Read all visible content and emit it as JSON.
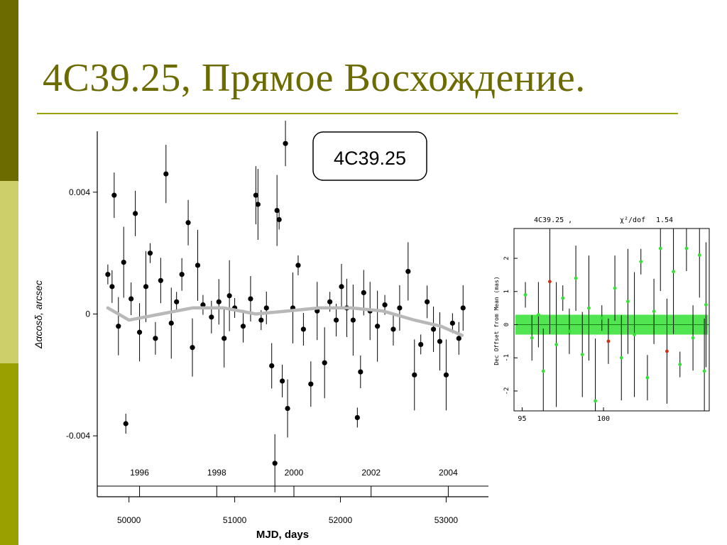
{
  "slide": {
    "title": "4C39.25, Прямое Восхождение."
  },
  "colors": {
    "title": "#6b6b00",
    "rule": "#9aa000",
    "points": "#000000",
    "trend": "#b8b8b8",
    "inset_points": "#33e033",
    "inset_outliers": "#d03010"
  },
  "chart_data": [
    {
      "type": "scatter",
      "title": "4C39.25",
      "xlabel": "MJD, days",
      "ylabel": "Δαcosδ, arcsec",
      "xlim": [
        49700,
        53400
      ],
      "ylim": [
        -0.006,
        0.006
      ],
      "x_ticks": [
        50000,
        51000,
        52000,
        53000
      ],
      "x_tick_labels": [
        "50000",
        "51000",
        "52000",
        "53000"
      ],
      "y_ticks": [
        0.004,
        0,
        -0.004
      ],
      "y_tick_labels": [
        "0.004",
        "0",
        "-0.004"
      ],
      "year_ticks": [
        {
          "mjd": 50100,
          "label": "1996"
        },
        {
          "mjd": 50830,
          "label": "1998"
        },
        {
          "mjd": 51560,
          "label": "2000"
        },
        {
          "mjd": 52290,
          "label": "2002"
        },
        {
          "mjd": 53020,
          "label": "2004"
        }
      ],
      "grid": false,
      "series": [
        {
          "points": [
            {
              "x": 49800,
              "y": 0.0013
            },
            {
              "x": 49840,
              "y": 0.0009
            },
            {
              "x": 49860,
              "y": 0.0039
            },
            {
              "x": 49900,
              "y": -0.0004
            },
            {
              "x": 49950,
              "y": 0.0017
            },
            {
              "x": 49970,
              "y": -0.0036
            },
            {
              "x": 50020,
              "y": 0.0005
            },
            {
              "x": 50060,
              "y": 0.0033
            },
            {
              "x": 50100,
              "y": -0.0006
            },
            {
              "x": 50160,
              "y": 0.0009
            },
            {
              "x": 50200,
              "y": 0.002
            },
            {
              "x": 50250,
              "y": -0.0008
            },
            {
              "x": 50300,
              "y": 0.0011
            },
            {
              "x": 50350,
              "y": 0.0046
            },
            {
              "x": 50400,
              "y": -0.0003
            },
            {
              "x": 50450,
              "y": 0.0004
            },
            {
              "x": 50500,
              "y": 0.0013
            },
            {
              "x": 50560,
              "y": 0.003
            },
            {
              "x": 50600,
              "y": -0.0011
            },
            {
              "x": 50650,
              "y": 0.0016
            },
            {
              "x": 50700,
              "y": 0.0003
            },
            {
              "x": 50780,
              "y": -0.0001
            },
            {
              "x": 50850,
              "y": 0.0004
            },
            {
              "x": 50900,
              "y": -0.0008
            },
            {
              "x": 50950,
              "y": 0.0006
            },
            {
              "x": 51000,
              "y": 0.0002
            },
            {
              "x": 51080,
              "y": -0.0004
            },
            {
              "x": 51150,
              "y": 0.0005
            },
            {
              "x": 51200,
              "y": 0.0039
            },
            {
              "x": 51220,
              "y": 0.0036
            },
            {
              "x": 51250,
              "y": -0.0002
            },
            {
              "x": 51300,
              "y": 0.0002
            },
            {
              "x": 51350,
              "y": -0.0017
            },
            {
              "x": 51380,
              "y": -0.0049
            },
            {
              "x": 51400,
              "y": 0.0034
            },
            {
              "x": 51420,
              "y": 0.0031
            },
            {
              "x": 51450,
              "y": -0.0022
            },
            {
              "x": 51480,
              "y": 0.0056
            },
            {
              "x": 51500,
              "y": -0.0031
            },
            {
              "x": 51550,
              "y": 0.0002
            },
            {
              "x": 51600,
              "y": 0.0016
            },
            {
              "x": 51650,
              "y": -0.0005
            },
            {
              "x": 51720,
              "y": -0.0023
            },
            {
              "x": 51780,
              "y": 0.0001
            },
            {
              "x": 51850,
              "y": -0.0016
            },
            {
              "x": 51900,
              "y": 0.0004
            },
            {
              "x": 51960,
              "y": -0.0002
            },
            {
              "x": 52010,
              "y": 0.0009
            },
            {
              "x": 52060,
              "y": 0.0002
            },
            {
              "x": 52120,
              "y": -0.0002
            },
            {
              "x": 52160,
              "y": -0.0034
            },
            {
              "x": 52190,
              "y": -0.0019
            },
            {
              "x": 52220,
              "y": 0.0007
            },
            {
              "x": 52280,
              "y": 0.0001
            },
            {
              "x": 52350,
              "y": -0.0004
            },
            {
              "x": 52420,
              "y": 0.0003
            },
            {
              "x": 52500,
              "y": -0.0005
            },
            {
              "x": 52560,
              "y": 0.0002
            },
            {
              "x": 52640,
              "y": 0.0014
            },
            {
              "x": 52700,
              "y": -0.002
            },
            {
              "x": 52760,
              "y": -0.001
            },
            {
              "x": 52820,
              "y": 0.0004
            },
            {
              "x": 52880,
              "y": -0.0005
            },
            {
              "x": 52940,
              "y": -0.0009
            },
            {
              "x": 53000,
              "y": -0.002
            },
            {
              "x": 53060,
              "y": -0.0003
            },
            {
              "x": 53120,
              "y": -0.0008
            },
            {
              "x": 53160,
              "y": 0.0002
            }
          ]
        },
        {
          "type": "line",
          "points": [
            {
              "x": 49800,
              "y": 0.0002
            },
            {
              "x": 50000,
              "y": -0.0002
            },
            {
              "x": 50300,
              "y": 0.0
            },
            {
              "x": 50600,
              "y": 0.0002
            },
            {
              "x": 50900,
              "y": 0.0002
            },
            {
              "x": 51200,
              "y": 0.0
            },
            {
              "x": 51500,
              "y": 0.0001
            },
            {
              "x": 51800,
              "y": 0.0002
            },
            {
              "x": 52100,
              "y": 0.0002
            },
            {
              "x": 52400,
              "y": 0.0001
            },
            {
              "x": 52700,
              "y": -0.0002
            },
            {
              "x": 52950,
              "y": -0.0004
            },
            {
              "x": 53150,
              "y": -0.0007
            }
          ]
        }
      ]
    },
    {
      "type": "scatter",
      "title": "4C39.25 ,",
      "stat_label": "χ²/dof",
      "stat_value": "1.54",
      "ylabel": "Dec Offset from Mean (mas)",
      "xlim": [
        94.5,
        106.5
      ],
      "ylim": [
        -2.6,
        2.9
      ],
      "x_tick_labels": [
        "95",
        "100"
      ],
      "y_tick_labels": [
        "2",
        "1",
        "0",
        "-1",
        "-2"
      ],
      "grid": false,
      "series": [
        {
          "points": [
            {
              "x": 95.2,
              "y": 0.9
            },
            {
              "x": 95.6,
              "y": -0.4
            },
            {
              "x": 96.0,
              "y": 0.3
            },
            {
              "x": 96.3,
              "y": -1.4
            },
            {
              "x": 96.7,
              "y": 1.3
            },
            {
              "x": 97.1,
              "y": -0.6
            },
            {
              "x": 97.5,
              "y": 0.8
            },
            {
              "x": 97.9,
              "y": -0.2
            },
            {
              "x": 98.3,
              "y": 1.4
            },
            {
              "x": 98.7,
              "y": -0.9
            },
            {
              "x": 99.1,
              "y": 0.5
            },
            {
              "x": 99.5,
              "y": -2.3
            },
            {
              "x": 99.9,
              "y": 0.2
            },
            {
              "x": 100.3,
              "y": -0.5
            },
            {
              "x": 100.7,
              "y": 1.1
            },
            {
              "x": 101.1,
              "y": -1.0
            },
            {
              "x": 101.5,
              "y": 0.7
            },
            {
              "x": 101.9,
              "y": -0.3
            },
            {
              "x": 102.3,
              "y": 1.9
            },
            {
              "x": 102.7,
              "y": -1.6
            },
            {
              "x": 103.1,
              "y": 0.4
            },
            {
              "x": 103.5,
              "y": 2.3
            },
            {
              "x": 103.9,
              "y": -0.8
            },
            {
              "x": 104.3,
              "y": 1.6
            },
            {
              "x": 104.7,
              "y": -1.2
            },
            {
              "x": 105.1,
              "y": 2.3
            },
            {
              "x": 105.5,
              "y": -0.4
            },
            {
              "x": 105.9,
              "y": 2.1
            },
            {
              "x": 106.2,
              "y": -1.4
            },
            {
              "x": 106.3,
              "y": 0.6
            }
          ]
        }
      ]
    }
  ]
}
